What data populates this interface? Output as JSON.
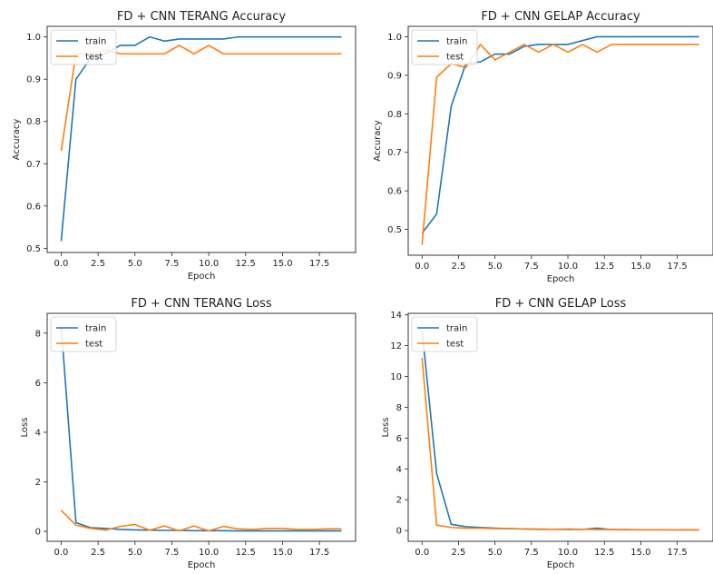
{
  "colors": {
    "train": "#1f77b4",
    "test": "#ff7f0e"
  },
  "chart_data": [
    {
      "type": "line",
      "title": "FD + CNN TERANG Accuracy",
      "xlabel": "Epoch",
      "ylabel": "Accuracy",
      "xlim": [
        -0.95,
        19.95
      ],
      "ylim": [
        0.49,
        1.025
      ],
      "xticks": [
        "0.0",
        "2.5",
        "5.0",
        "7.5",
        "10.0",
        "12.5",
        "15.0",
        "17.5"
      ],
      "yticks": [
        "0.5",
        "0.6",
        "0.7",
        "0.8",
        "0.9",
        "1.0"
      ],
      "legend_position": "top-left",
      "x": [
        0,
        1,
        2,
        3,
        4,
        5,
        6,
        7,
        8,
        9,
        10,
        11,
        12,
        13,
        14,
        15,
        16,
        17,
        18,
        19
      ],
      "series": [
        {
          "name": "train",
          "values": [
            0.517,
            0.9,
            0.95,
            0.96,
            0.98,
            0.98,
            1.0,
            0.99,
            0.995,
            0.995,
            0.995,
            0.995,
            1.0,
            1.0,
            1.0,
            1.0,
            1.0,
            1.0,
            1.0,
            1.0
          ]
        },
        {
          "name": "test",
          "values": [
            0.73,
            0.96,
            0.96,
            0.97,
            0.96,
            0.96,
            0.96,
            0.96,
            0.98,
            0.96,
            0.98,
            0.96,
            0.96,
            0.96,
            0.96,
            0.96,
            0.96,
            0.96,
            0.96,
            0.96
          ]
        }
      ]
    },
    {
      "type": "line",
      "title": "FD + CNN GELAP Accuracy",
      "xlabel": "Epoch",
      "ylabel": "Accuracy",
      "xlim": [
        -0.95,
        19.95
      ],
      "ylim": [
        0.433,
        1.027
      ],
      "xticks": [
        "0.0",
        "2.5",
        "5.0",
        "7.5",
        "10.0",
        "12.5",
        "15.0",
        "17.5"
      ],
      "yticks": [
        "0.5",
        "0.6",
        "0.7",
        "0.8",
        "0.9",
        "1.0"
      ],
      "legend_position": "top-left",
      "x": [
        0,
        1,
        2,
        3,
        4,
        5,
        6,
        7,
        8,
        9,
        10,
        11,
        12,
        13,
        14,
        15,
        16,
        17,
        18,
        19
      ],
      "series": [
        {
          "name": "train",
          "values": [
            0.49,
            0.54,
            0.82,
            0.93,
            0.935,
            0.955,
            0.955,
            0.975,
            0.98,
            0.98,
            0.98,
            0.99,
            1.0,
            1.0,
            1.0,
            1.0,
            1.0,
            1.0,
            1.0,
            1.0
          ]
        },
        {
          "name": "test",
          "values": [
            0.46,
            0.895,
            0.93,
            0.92,
            0.98,
            0.94,
            0.96,
            0.98,
            0.96,
            0.98,
            0.96,
            0.98,
            0.96,
            0.98,
            0.98,
            0.98,
            0.98,
            0.98,
            0.98,
            0.98
          ]
        }
      ]
    },
    {
      "type": "line",
      "title": "FD + CNN TERANG Loss",
      "xlabel": "Epoch",
      "ylabel": "Loss",
      "xlim": [
        -0.95,
        19.95
      ],
      "ylim": [
        -0.4,
        8.8
      ],
      "xticks": [
        "0.0",
        "2.5",
        "5.0",
        "7.5",
        "10.0",
        "12.5",
        "15.0",
        "17.5"
      ],
      "yticks": [
        "0",
        "2",
        "4",
        "6",
        "8"
      ],
      "legend_position": "top-left",
      "x": [
        0,
        1,
        2,
        3,
        4,
        5,
        6,
        7,
        8,
        9,
        10,
        11,
        12,
        13,
        14,
        15,
        16,
        17,
        18,
        19
      ],
      "series": [
        {
          "name": "train",
          "values": [
            8.3,
            0.35,
            0.15,
            0.12,
            0.08,
            0.06,
            0.05,
            0.04,
            0.04,
            0.03,
            0.03,
            0.03,
            0.02,
            0.02,
            0.02,
            0.02,
            0.02,
            0.02,
            0.02,
            0.02
          ]
        },
        {
          "name": "test",
          "values": [
            0.85,
            0.25,
            0.12,
            0.05,
            0.2,
            0.28,
            0.05,
            0.22,
            0.02,
            0.22,
            0.02,
            0.2,
            0.1,
            0.08,
            0.12,
            0.12,
            0.08,
            0.08,
            0.1,
            0.1
          ]
        }
      ]
    },
    {
      "type": "line",
      "title": "FD + CNN GELAP Loss",
      "xlabel": "Epoch",
      "ylabel": "Loss",
      "xlim": [
        -0.95,
        19.95
      ],
      "ylim": [
        -0.7,
        14.1
      ],
      "xticks": [
        "0.0",
        "2.5",
        "5.0",
        "7.5",
        "10.0",
        "12.5",
        "15.0",
        "17.5"
      ],
      "yticks": [
        "0",
        "2",
        "4",
        "6",
        "8",
        "10",
        "12",
        "14"
      ],
      "legend_position": "top-left",
      "x": [
        0,
        1,
        2,
        3,
        4,
        5,
        6,
        7,
        8,
        9,
        10,
        11,
        12,
        13,
        14,
        15,
        16,
        17,
        18,
        19
      ],
      "series": [
        {
          "name": "train",
          "values": [
            13.0,
            3.7,
            0.4,
            0.25,
            0.2,
            0.15,
            0.12,
            0.1,
            0.08,
            0.08,
            0.07,
            0.07,
            0.15,
            0.06,
            0.06,
            0.05,
            0.05,
            0.05,
            0.05,
            0.05
          ]
        },
        {
          "name": "test",
          "values": [
            11.2,
            0.35,
            0.2,
            0.15,
            0.15,
            0.12,
            0.12,
            0.1,
            0.1,
            0.08,
            0.1,
            0.08,
            0.06,
            0.06,
            0.05,
            0.05,
            0.05,
            0.05,
            0.04,
            0.04
          ]
        }
      ]
    }
  ]
}
